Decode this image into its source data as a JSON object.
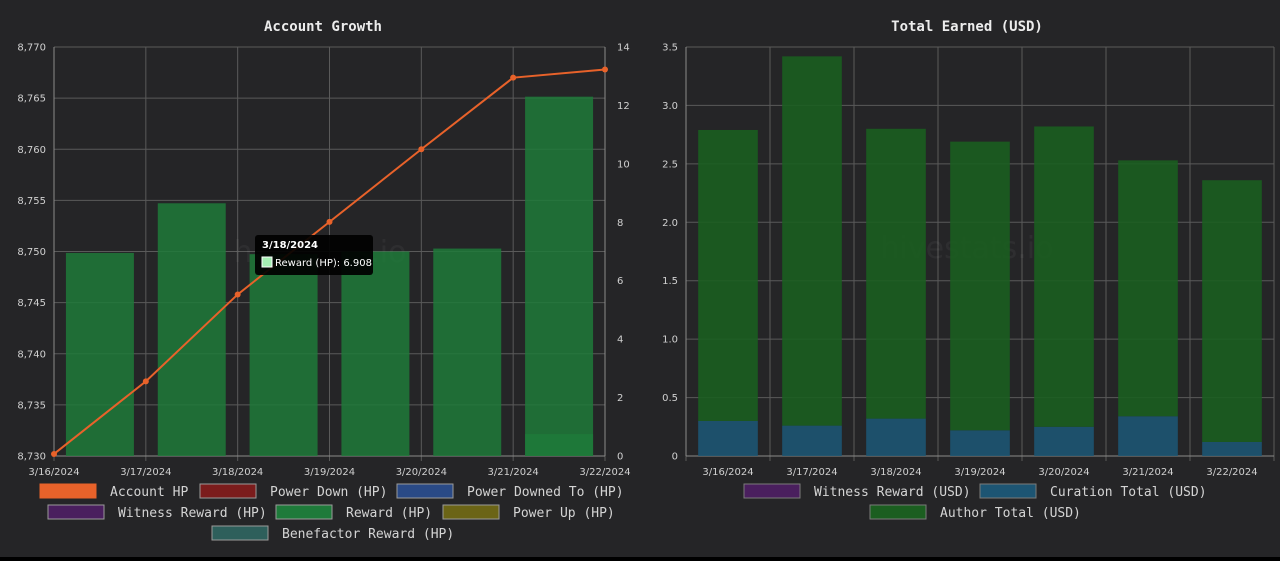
{
  "chart_data": [
    {
      "type": "bar",
      "title": "Account Growth",
      "categories": [
        "3/16/2024",
        "3/17/2024",
        "3/18/2024",
        "3/19/2024",
        "3/20/2024",
        "3/21/2024",
        "3/22/2024"
      ],
      "y_left": {
        "min": 8730,
        "max": 8770,
        "step": 5,
        "ticks": [
          "8,730",
          "8,735",
          "8,740",
          "8,745",
          "8,750",
          "8,755",
          "8,760",
          "8,765",
          "8,770"
        ]
      },
      "y_right": {
        "min": 0,
        "max": 14,
        "step": 2,
        "ticks": [
          "0",
          "2",
          "4",
          "6",
          "8",
          "10",
          "12",
          "14"
        ]
      },
      "series": [
        {
          "name": "Account HP",
          "type": "line",
          "axis": "left",
          "color": "#e8622a",
          "values": [
            8730.2,
            8737.3,
            8745.8,
            8752.9,
            8760.0,
            8767.0,
            8767.8
          ]
        },
        {
          "name": "Power Down (HP)",
          "type": "bar",
          "axis": "right",
          "color": "#7b1c1c",
          "values": [
            0,
            0,
            0,
            0,
            0,
            0,
            0
          ]
        },
        {
          "name": "Power Downed To (HP)",
          "type": "bar",
          "axis": "right",
          "color": "#2a4a86",
          "values": [
            0,
            0,
            0,
            0,
            0,
            0,
            0
          ]
        },
        {
          "name": "Witness Reward (HP)",
          "type": "bar",
          "axis": "right",
          "color": "#4a1f5e",
          "values": [
            0,
            0,
            0,
            0,
            0,
            0,
            0
          ]
        },
        {
          "name": "Reward (HP)",
          "type": "bar",
          "axis": "right",
          "color": "#1e7a3a",
          "values": [
            6.95,
            8.65,
            6.908,
            7.0,
            7.1,
            0.75,
            12.3
          ]
        },
        {
          "name": "Power Up (HP)",
          "type": "bar",
          "axis": "right",
          "color": "#6b6416",
          "values": [
            0,
            0,
            0,
            0,
            0,
            0,
            0
          ]
        },
        {
          "name": "Benefactor Reward (HP)",
          "type": "bar",
          "axis": "right",
          "color": "#2e5f5b",
          "values": [
            0,
            0,
            0,
            0,
            0,
            0,
            0
          ]
        }
      ],
      "legend_position": "bottom",
      "grid": true,
      "tooltip": {
        "title": "3/18/2024",
        "label": "Reward (HP): 6.908",
        "color": "#a6f0b4"
      }
    },
    {
      "type": "bar",
      "stacked": true,
      "title": "Total Earned (USD)",
      "categories": [
        "3/16/2024",
        "3/17/2024",
        "3/18/2024",
        "3/19/2024",
        "3/20/2024",
        "3/21/2024",
        "3/22/2024"
      ],
      "y": {
        "min": 0,
        "max": 3.5,
        "step": 0.5,
        "ticks": [
          "0",
          "0.5",
          "1.0",
          "1.5",
          "2.0",
          "2.5",
          "3.0",
          "3.5"
        ]
      },
      "series": [
        {
          "name": "Witness Reward (USD)",
          "color": "#4a1f5e",
          "values": [
            0,
            0,
            0,
            0,
            0,
            0,
            0
          ]
        },
        {
          "name": "Curation Total (USD)",
          "color": "#1d5573",
          "values": [
            0.3,
            0.26,
            0.32,
            0.22,
            0.25,
            0.34,
            0.12
          ]
        },
        {
          "name": "Author Total (USD)",
          "color": "#1b5e20",
          "values": [
            2.49,
            3.16,
            2.48,
            2.47,
            2.57,
            2.19,
            2.24
          ]
        }
      ],
      "legend_position": "bottom",
      "grid": true,
      "watermark": "hivestats.io"
    }
  ]
}
